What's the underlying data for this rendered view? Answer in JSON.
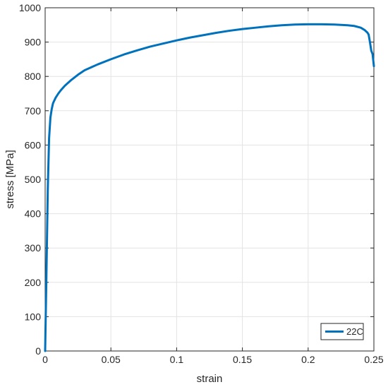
{
  "chart_data": {
    "type": "line",
    "title": "",
    "xlabel": "strain",
    "ylabel": "stress [MPa]",
    "xlim": [
      0,
      0.25
    ],
    "ylim": [
      0,
      1000
    ],
    "xticks": [
      0,
      0.05,
      0.1,
      0.15,
      0.2,
      0.25
    ],
    "xtick_labels": [
      "0",
      "0.05",
      "0.1",
      "0.15",
      "0.2",
      "0.25"
    ],
    "yticks": [
      0,
      100,
      200,
      300,
      400,
      500,
      600,
      700,
      800,
      900,
      1000
    ],
    "ytick_labels": [
      "0",
      "100",
      "200",
      "300",
      "400",
      "500",
      "600",
      "700",
      "800",
      "900",
      "1000"
    ],
    "grid": true,
    "legend_position": "bottom-right",
    "series": [
      {
        "name": "22C",
        "color": "#0072BD",
        "x": [
          0,
          0.001,
          0.002,
          0.003,
          0.004,
          0.005,
          0.006,
          0.008,
          0.01,
          0.012,
          0.015,
          0.02,
          0.025,
          0.03,
          0.04,
          0.05,
          0.06,
          0.07,
          0.08,
          0.09,
          0.1,
          0.11,
          0.12,
          0.13,
          0.14,
          0.15,
          0.16,
          0.17,
          0.18,
          0.19,
          0.2,
          0.21,
          0.22,
          0.23,
          0.235,
          0.24,
          0.243,
          0.245,
          0.246,
          0.247,
          0.248,
          0.249,
          0.25
        ],
        "y": [
          0,
          230,
          470,
          620,
          680,
          705,
          722,
          738,
          750,
          760,
          773,
          790,
          805,
          818,
          835,
          850,
          864,
          876,
          887,
          896,
          905,
          913,
          920,
          927,
          933,
          938,
          942,
          946,
          949,
          951,
          952,
          952,
          951,
          949,
          947,
          942,
          935,
          928,
          922,
          900,
          875,
          865,
          830
        ]
      }
    ]
  }
}
